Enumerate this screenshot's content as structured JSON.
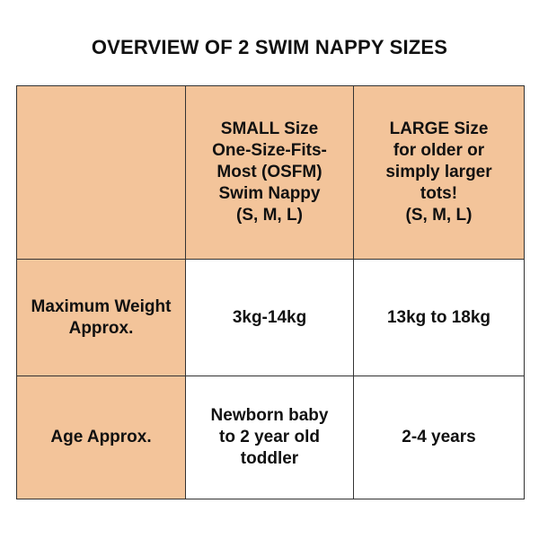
{
  "title": "OVERVIEW OF 2 SWIM NAPPY SIZES",
  "table": {
    "header": {
      "corner": "",
      "small": "SMALL Size\nOne-Size-Fits-\nMost (OSFM)\nSwim Nappy\n(S, M, L)",
      "large": "LARGE Size\nfor older or\nsimply larger\ntots!\n(S, M, L)"
    },
    "rows": [
      {
        "label": "Maximum Weight\nApprox.",
        "small": "3kg-14kg",
        "large": "13kg to 18kg"
      },
      {
        "label": "Age Approx.",
        "small": "Newborn baby\nto 2 year old\ntoddler",
        "large": "2-4 years"
      }
    ]
  },
  "colors": {
    "header_fill": "#f3c49a",
    "border": "#333333",
    "text": "#111111"
  }
}
